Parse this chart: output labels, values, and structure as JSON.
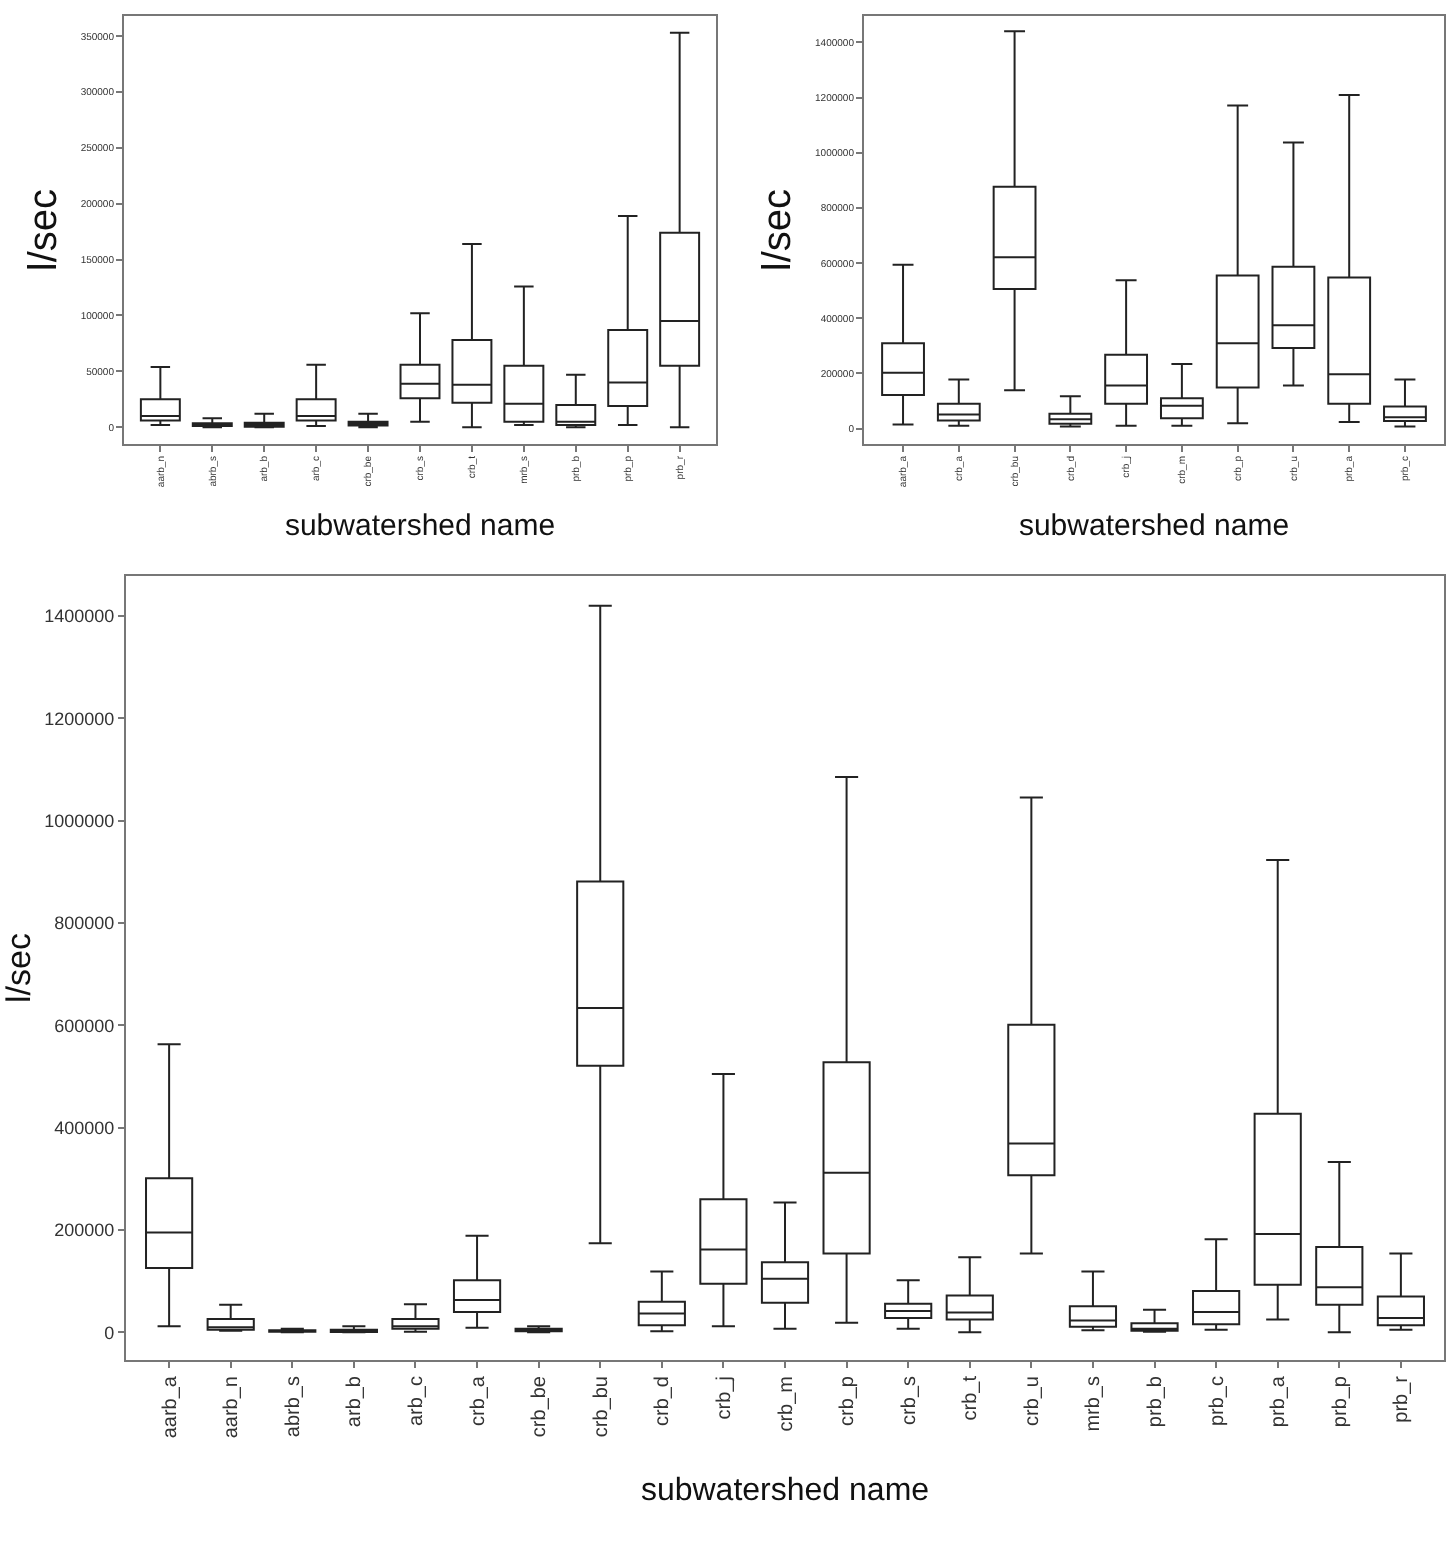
{
  "chart_data": [
    {
      "type": "box",
      "xlabel": "subwatershed name",
      "ylabel": "l/sec",
      "categories": [
        "aarb_n",
        "abrb_s",
        "arb_b",
        "arb_c",
        "crb_be",
        "crb_s",
        "crb_t",
        "mrb_s",
        "prb_b",
        "prb_p",
        "prb_r"
      ],
      "ylim": [
        -15000,
        368000
      ],
      "yticks": [
        0,
        50000,
        100000,
        150000,
        200000,
        250000,
        300000,
        350000
      ],
      "boxes": [
        {
          "low": 2000,
          "q1": 6000,
          "median": 10000,
          "q3": 25000,
          "high": 54000
        },
        {
          "low": 0,
          "q1": 1000,
          "median": 2000,
          "q3": 3500,
          "high": 8000
        },
        {
          "low": 0,
          "q1": 500,
          "median": 1000,
          "q3": 4000,
          "high": 12000
        },
        {
          "low": 1000,
          "q1": 6000,
          "median": 10000,
          "q3": 25000,
          "high": 56000
        },
        {
          "low": 0,
          "q1": 1500,
          "median": 2500,
          "q3": 5000,
          "high": 12000
        },
        {
          "low": 5000,
          "q1": 26000,
          "median": 39000,
          "q3": 56000,
          "high": 102000
        },
        {
          "low": 0,
          "q1": 22000,
          "median": 38000,
          "q3": 78000,
          "high": 164000
        },
        {
          "low": 2000,
          "q1": 5000,
          "median": 21000,
          "q3": 55000,
          "high": 126000
        },
        {
          "low": 0,
          "q1": 2000,
          "median": 5000,
          "q3": 20000,
          "high": 47000
        },
        {
          "low": 2000,
          "q1": 19000,
          "median": 40000,
          "q3": 87000,
          "high": 189000
        },
        {
          "low": 0,
          "q1": 55000,
          "median": 95000,
          "q3": 174000,
          "high": 353000
        }
      ]
    },
    {
      "type": "box",
      "xlabel": "subwatershed name",
      "ylabel": "l/sec",
      "categories": [
        "aarb_a",
        "crb_a",
        "crb_bu",
        "crb_d",
        "crb_j",
        "crb_m",
        "crb_p",
        "crb_u",
        "prb_a",
        "prb_c"
      ],
      "ylim": [
        -56000,
        1496000
      ],
      "yticks": [
        0,
        200000,
        400000,
        600000,
        800000,
        1000000,
        1200000,
        1400000
      ],
      "boxes": [
        {
          "low": 15000,
          "q1": 122000,
          "median": 202000,
          "q3": 309000,
          "high": 594000
        },
        {
          "low": 10000,
          "q1": 29000,
          "median": 51000,
          "q3": 90000,
          "high": 178000
        },
        {
          "low": 139000,
          "q1": 506000,
          "median": 621000,
          "q3": 877000,
          "high": 1441000
        },
        {
          "low": 7000,
          "q1": 17000,
          "median": 34000,
          "q3": 54000,
          "high": 117000
        },
        {
          "low": 10000,
          "q1": 90000,
          "median": 156000,
          "q3": 268000,
          "high": 538000
        },
        {
          "low": 10000,
          "q1": 37000,
          "median": 83000,
          "q3": 110000,
          "high": 234000
        },
        {
          "low": 19000,
          "q1": 149000,
          "median": 309000,
          "q3": 555000,
          "high": 1171000
        },
        {
          "low": 156000,
          "q1": 292000,
          "median": 375000,
          "q3": 587000,
          "high": 1037000
        },
        {
          "low": 24000,
          "q1": 90000,
          "median": 197000,
          "q3": 548000,
          "high": 1210000
        },
        {
          "low": 7000,
          "q1": 27000,
          "median": 41000,
          "q3": 80000,
          "high": 178000
        }
      ]
    },
    {
      "type": "box",
      "xlabel": "subwatershed name",
      "ylabel": "l/sec",
      "categories": [
        "aarb_a",
        "aarb_n",
        "abrb_s",
        "arb_b",
        "arb_c",
        "crb_a",
        "crb_be",
        "crb_bu",
        "crb_d",
        "crb_j",
        "crb_m",
        "crb_p",
        "crb_s",
        "crb_t",
        "crb_u",
        "mrb_s",
        "prb_b",
        "prb_c",
        "prb_a",
        "prb_p",
        "prb_r"
      ],
      "ylim": [
        -54000,
        1478000
      ],
      "yticks": [
        0,
        200000,
        400000,
        600000,
        800000,
        1000000,
        1200000,
        1400000
      ],
      "boxes": [
        {
          "low": 12000,
          "q1": 126000,
          "median": 195000,
          "q3": 301000,
          "high": 563000
        },
        {
          "low": 3000,
          "q1": 5000,
          "median": 10000,
          "q3": 26000,
          "high": 54000
        },
        {
          "low": 0,
          "q1": 1000,
          "median": 2000,
          "q3": 4000,
          "high": 7000
        },
        {
          "low": 0,
          "q1": 500,
          "median": 1500,
          "q3": 5000,
          "high": 12000
        },
        {
          "low": 1000,
          "q1": 7000,
          "median": 12000,
          "q3": 26000,
          "high": 55000
        },
        {
          "low": 9000,
          "q1": 40000,
          "median": 63000,
          "q3": 102000,
          "high": 189000
        },
        {
          "low": 0,
          "q1": 2000,
          "median": 4000,
          "q3": 7000,
          "high": 12000
        },
        {
          "low": 174000,
          "q1": 521000,
          "median": 634000,
          "q3": 881000,
          "high": 1420000
        },
        {
          "low": 2000,
          "q1": 14000,
          "median": 37000,
          "q3": 60000,
          "high": 119000
        },
        {
          "low": 12000,
          "q1": 95000,
          "median": 162000,
          "q3": 260000,
          "high": 505000
        },
        {
          "low": 7000,
          "q1": 58000,
          "median": 105000,
          "q3": 137000,
          "high": 254000
        },
        {
          "low": 19000,
          "q1": 154000,
          "median": 312000,
          "q3": 528000,
          "high": 1085000
        },
        {
          "low": 7000,
          "q1": 28000,
          "median": 42000,
          "q3": 56000,
          "high": 102000
        },
        {
          "low": 0,
          "q1": 25000,
          "median": 39000,
          "q3": 72000,
          "high": 147000
        },
        {
          "low": 154000,
          "q1": 307000,
          "median": 369000,
          "q3": 601000,
          "high": 1045000
        },
        {
          "low": 4000,
          "q1": 11000,
          "median": 23000,
          "q3": 51000,
          "high": 119000
        },
        {
          "low": 1000,
          "q1": 3000,
          "median": 7000,
          "q3": 18000,
          "high": 44000
        },
        {
          "low": 5000,
          "q1": 16000,
          "median": 40000,
          "q3": 81000,
          "high": 182000
        },
        {
          "low": 25000,
          "q1": 93000,
          "median": 192000,
          "q3": 427000,
          "high": 923000
        },
        {
          "low": 0,
          "q1": 54000,
          "median": 88000,
          "q3": 167000,
          "high": 333000
        },
        {
          "low": 5000,
          "q1": 14000,
          "median": 28000,
          "q3": 70000,
          "high": 154000
        }
      ]
    }
  ]
}
